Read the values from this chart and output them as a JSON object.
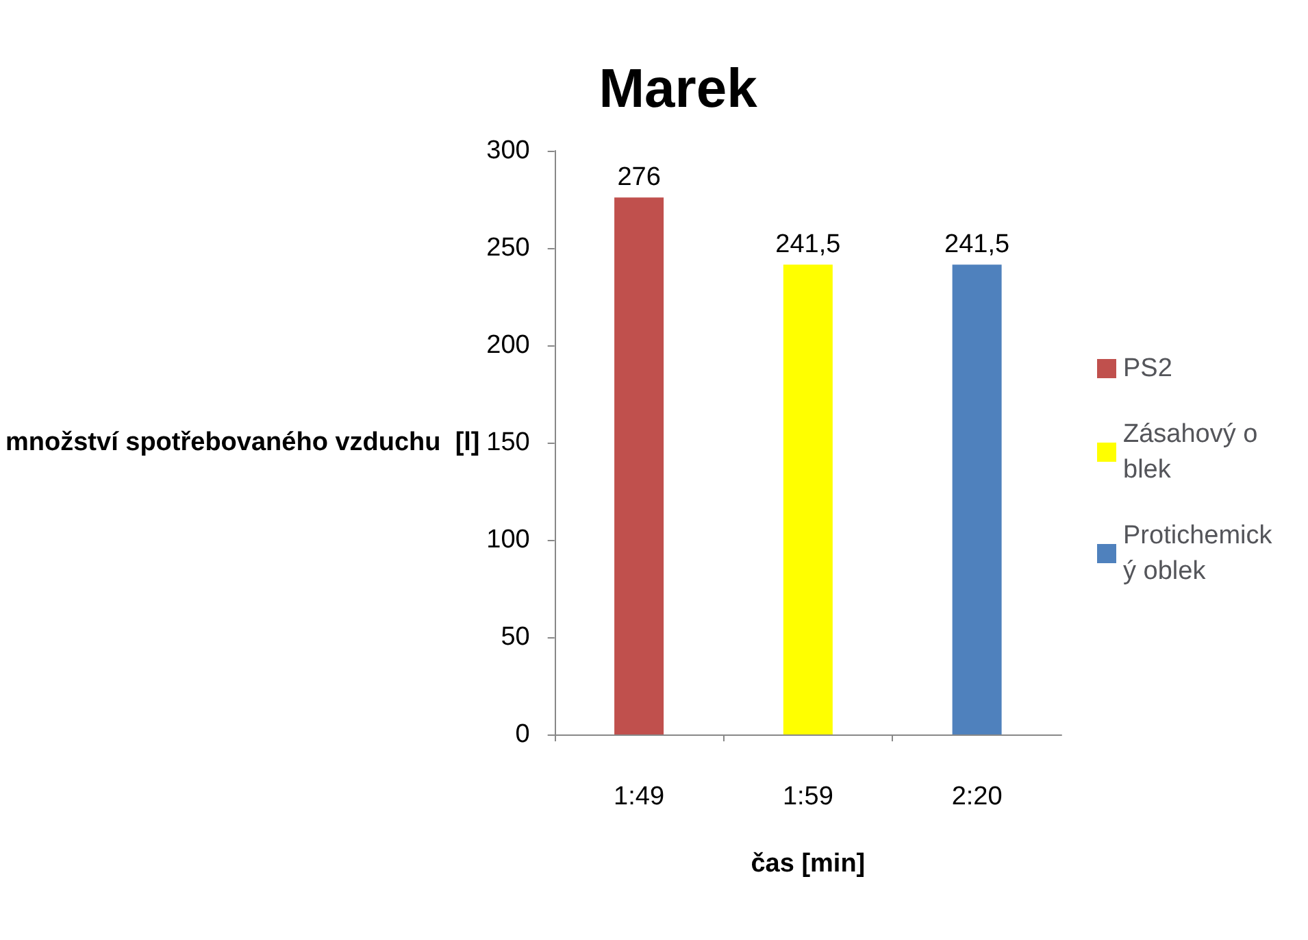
{
  "chart_data": {
    "type": "bar",
    "title": "Marek",
    "xlabel": "čas [min]",
    "ylabel": "množství spotřebovaného vzduchu  [l]",
    "categories": [
      "1:49",
      "1:59",
      "2:20"
    ],
    "series": [
      {
        "name": "PS2",
        "color": "#c0504d",
        "values": [
          276,
          null,
          null
        ],
        "value_labels": [
          "276",
          null,
          null
        ]
      },
      {
        "name": "Zásahový oblek",
        "color": "#ffff00",
        "values": [
          null,
          241.5,
          null
        ],
        "value_labels": [
          null,
          "241,5",
          null
        ]
      },
      {
        "name": "Protichemický oblek",
        "color": "#4f81bd",
        "values": [
          null,
          null,
          241.5
        ],
        "value_labels": [
          null,
          null,
          "241,5"
        ]
      }
    ],
    "ylim": [
      0,
      300
    ],
    "yticks": [
      0,
      50,
      100,
      150,
      200,
      250,
      300
    ],
    "grid": false,
    "legend": "right"
  }
}
